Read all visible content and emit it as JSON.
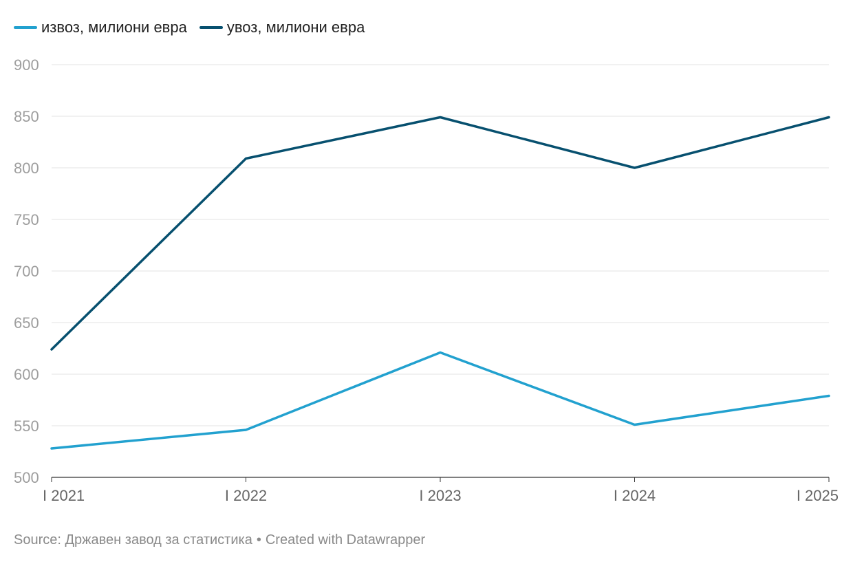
{
  "legend": [
    {
      "label": "извоз, милиони евра",
      "color": "#22a1cf"
    },
    {
      "label": "увоз, милиони евра",
      "color": "#07506f"
    }
  ],
  "footer": {
    "source": "Source: Државен завод за статистика",
    "separator": "•",
    "credit": "Created with Datawrapper"
  },
  "chart_data": {
    "type": "line",
    "x": [
      "I 2021",
      "I 2022",
      "I 2023",
      "I 2024",
      "I 2025"
    ],
    "ylim": [
      500,
      900
    ],
    "yticks": [
      500,
      550,
      600,
      650,
      700,
      750,
      800,
      850,
      900
    ],
    "grid": true,
    "legend_position": "top-left",
    "series": [
      {
        "name": "извоз, милиони евра",
        "color": "#22a1cf",
        "values": [
          528,
          546,
          621,
          551,
          579
        ]
      },
      {
        "name": "увоз, милиони евра",
        "color": "#07506f",
        "values": [
          624,
          809,
          849,
          800,
          849
        ]
      }
    ]
  }
}
